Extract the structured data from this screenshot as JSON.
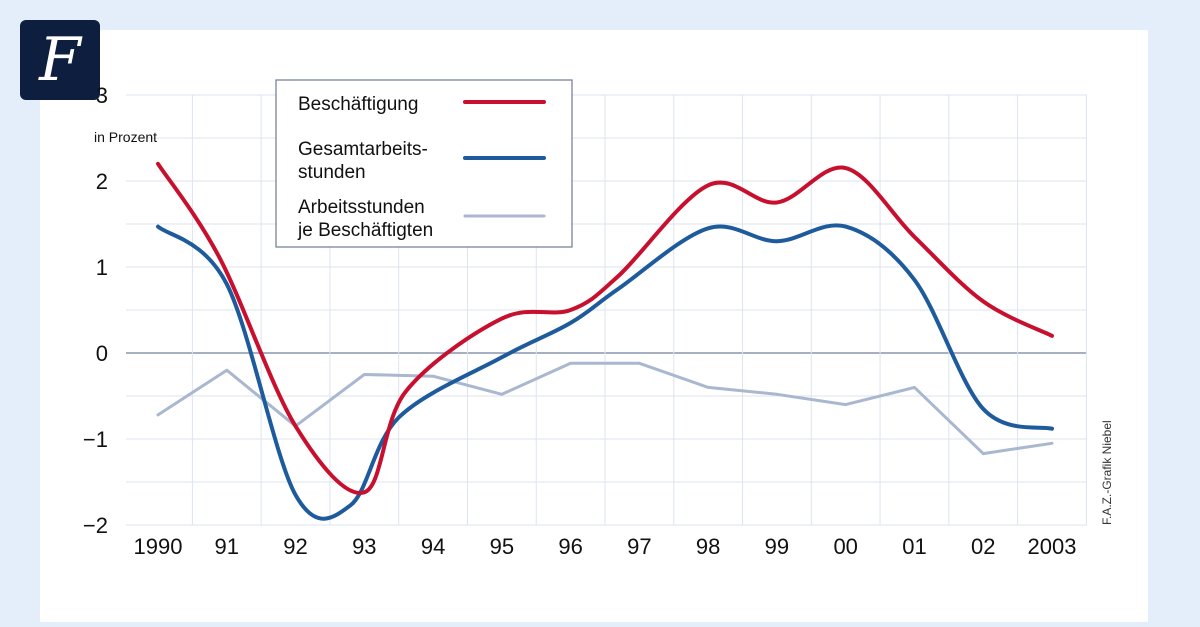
{
  "brand": {
    "logo_letter": "F"
  },
  "chart_data": {
    "type": "line",
    "title": "",
    "xlabel": "",
    "ylabel": "in Prozent",
    "ylim": [
      -2,
      3
    ],
    "yticks": [
      3,
      2,
      1,
      0,
      -1,
      -2
    ],
    "ytick_labels": [
      "3",
      "2",
      "1",
      "0",
      "−1",
      "−2"
    ],
    "categories": [
      "1990",
      "91",
      "92",
      "93",
      "94",
      "95",
      "96",
      "97",
      "98",
      "99",
      "00",
      "01",
      "02",
      "2003"
    ],
    "grid": true,
    "series": [
      {
        "name": "Beschäftigung",
        "color": "#c8102e",
        "x": [
          0,
          0.9,
          2,
          3,
          3.6,
          5,
          6,
          6.7,
          8,
          9,
          10,
          11,
          12,
          13
        ],
        "values": [
          2.2,
          1.1,
          -0.85,
          -1.62,
          -0.45,
          0.4,
          0.5,
          0.9,
          1.95,
          1.75,
          2.15,
          1.35,
          0.6,
          0.2
        ]
      },
      {
        "name": "Gesamtarbeitsstunden",
        "color": "#1d5b9c",
        "x": [
          0,
          1,
          2,
          2.8,
          3.5,
          5,
          6,
          6.7,
          8,
          9,
          10,
          11,
          12,
          13
        ],
        "values": [
          1.47,
          0.8,
          -1.65,
          -1.77,
          -0.75,
          -0.05,
          0.35,
          0.75,
          1.45,
          1.3,
          1.47,
          0.85,
          -0.65,
          -0.88
        ]
      },
      {
        "name": "Arbeitsstunden je Beschäftigten",
        "color": "#a9b7cf",
        "x": [
          0,
          1,
          2,
          3,
          4,
          5,
          6,
          7,
          8,
          9,
          10,
          11,
          12,
          13
        ],
        "values": [
          -0.72,
          -0.2,
          -0.85,
          -0.25,
          -0.27,
          -0.48,
          -0.12,
          -0.12,
          -0.4,
          -0.48,
          -0.6,
          -0.4,
          -1.17,
          -1.05
        ]
      }
    ],
    "legend": {
      "placement": "top-left",
      "entries": [
        {
          "lines": [
            "Beschäftigung"
          ],
          "color": "#c8102e"
        },
        {
          "lines": [
            "Gesamtarbeits-",
            "stunden"
          ],
          "color": "#1d5b9c"
        },
        {
          "lines": [
            "Arbeitsstunden",
            "je Beschäftigten"
          ],
          "color": "#a9b7cf"
        }
      ]
    },
    "credit": "F.A.Z.-Grafik Niebel"
  }
}
